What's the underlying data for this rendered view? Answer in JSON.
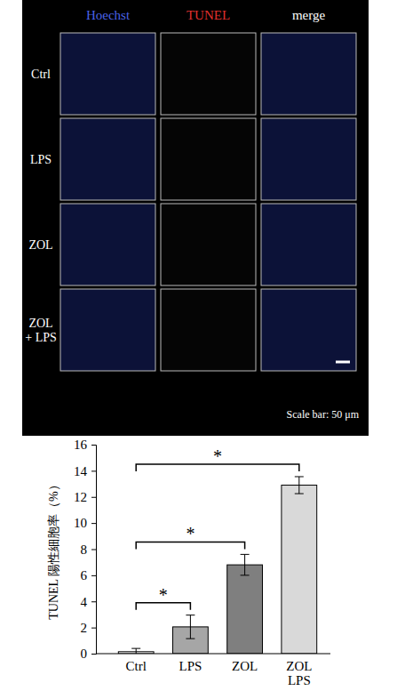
{
  "image_panel": {
    "columns": [
      "Hoechst",
      "TUNEL",
      "merge"
    ],
    "colors": [
      "#4a63e6",
      "#e0302e",
      "#ffffff"
    ],
    "rows": [
      "Ctrl",
      "LPS",
      "ZOL",
      "ZOL\n+ LPS"
    ],
    "scale_bar": "Scale bar: 50 μm"
  },
  "chart_data": {
    "type": "bar",
    "y_label": "TUNEL 陽性細胞率（%）",
    "categories": [
      "Ctrl",
      "LPS",
      "ZOL",
      "ZOL\nLPS"
    ],
    "values": [
      0.15,
      2.05,
      6.8,
      12.9
    ],
    "errors": [
      0.25,
      0.9,
      0.8,
      0.65
    ],
    "colors": [
      "#ffffff",
      "#a6a6a6",
      "#7f7f7f",
      "#d9d9d9"
    ],
    "ylim": [
      0,
      16
    ],
    "yticks": [
      0,
      2,
      4,
      6,
      8,
      10,
      12,
      14,
      16
    ],
    "grid": false,
    "significance": [
      {
        "from": "Ctrl",
        "to": "LPS",
        "label": "*"
      },
      {
        "from": "Ctrl",
        "to": "ZOL",
        "label": "*"
      },
      {
        "from": "Ctrl",
        "to": "ZOL\nLPS",
        "label": "*"
      }
    ]
  }
}
